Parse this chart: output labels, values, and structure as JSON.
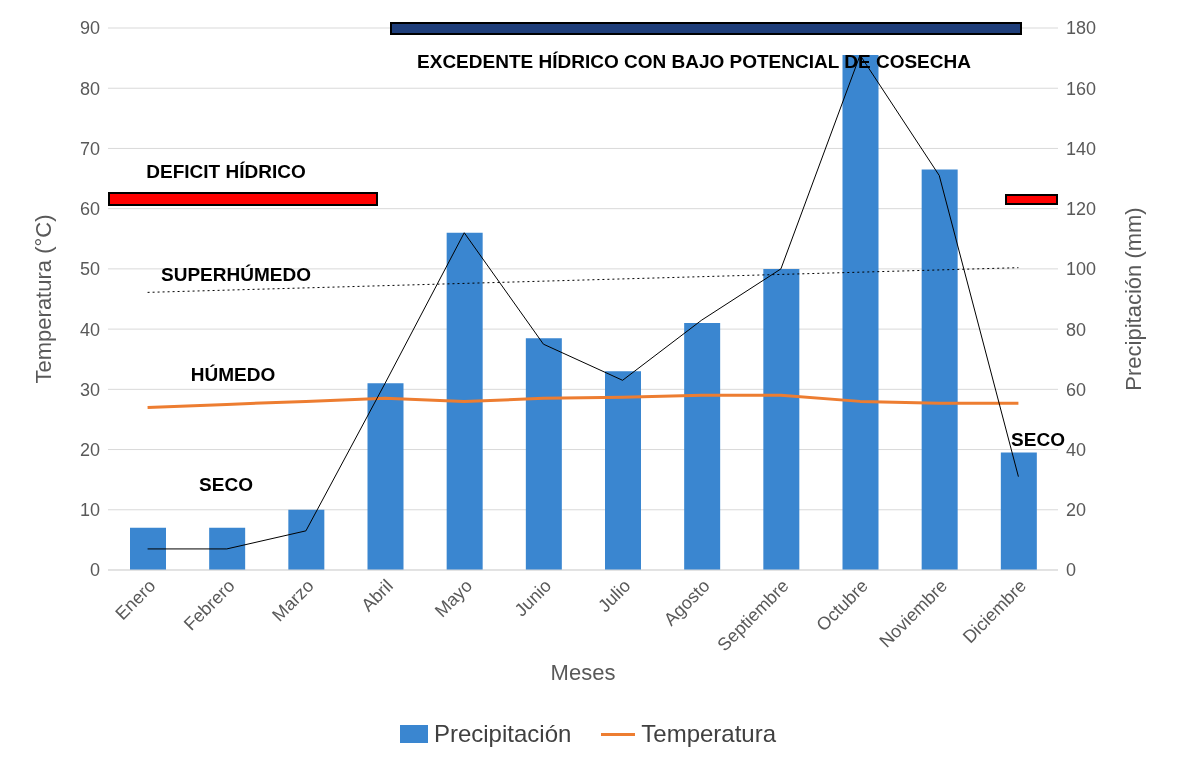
{
  "chart_data": {
    "type": "bar",
    "xlabel": "Meses",
    "ylabel": "Temperatura (°C)",
    "y2label": "Precipitación (mm)",
    "categories": [
      "Enero",
      "Febrero",
      "Marzo",
      "Abril",
      "Mayo",
      "Junio",
      "Julio",
      "Agosto",
      "Septiembre",
      "Octubre",
      "Noviembre",
      "Diciembre"
    ],
    "series": [
      {
        "name": "Precipitación",
        "axis": "y2",
        "color": "#3a86d0",
        "values": [
          14,
          14,
          20,
          62,
          112,
          77,
          66,
          82,
          100,
          171,
          133,
          39
        ]
      },
      {
        "name": "Temperatura",
        "type": "line",
        "color": "#ed7d31",
        "values": [
          27,
          27.5,
          28,
          28.5,
          28,
          28.5,
          28.7,
          29,
          29,
          28,
          27.7,
          27.7
        ]
      },
      {
        "type": "line",
        "axis": "y2",
        "color": "#000000",
        "values": [
          7,
          7,
          13,
          62,
          112,
          75,
          63,
          83,
          100,
          171,
          131,
          31
        ]
      },
      {
        "type": "line",
        "color": "#000000",
        "line_style": "dotted",
        "values": [
          46.1,
          null,
          null,
          null,
          null,
          null,
          null,
          null,
          null,
          null,
          null,
          50.2
        ]
      }
    ],
    "ylim": [
      0,
      90
    ],
    "yticks": [
      0,
      10,
      20,
      30,
      40,
      50,
      60,
      70,
      80,
      90
    ],
    "y2lim": [
      0,
      180
    ],
    "y2ticks": [
      0,
      20,
      40,
      60,
      80,
      100,
      120,
      140,
      160,
      180
    ],
    "grid": "y",
    "legend": "bottom",
    "marker": "none",
    "annotations": [
      "SECO",
      "HÚMEDO",
      "SUPERHÚMEDO",
      "DEFICIT HÍDRICO",
      "EXCEDENTE HÍDRICO CON BAJO POTENCIAL DE COSECHA",
      "SECO"
    ]
  }
}
